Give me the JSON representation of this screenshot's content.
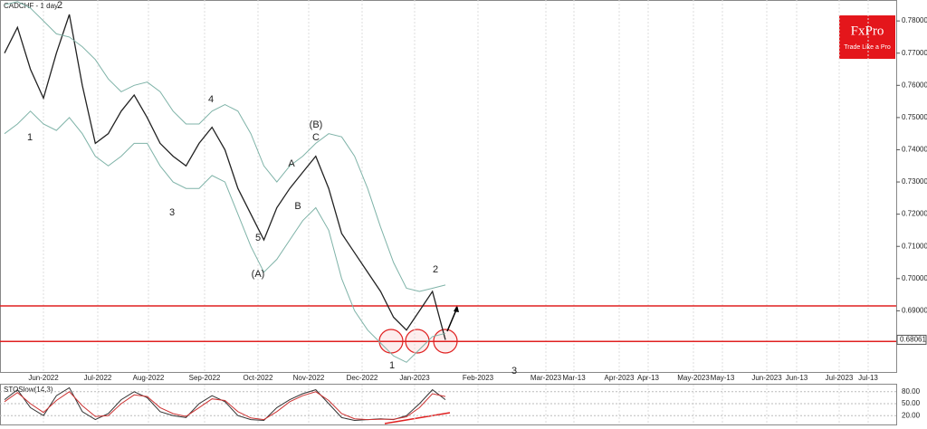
{
  "chart_data": {
    "type": "line",
    "title": "CADCHF - 1 day",
    "brand": "FxPro",
    "tagline": "Trade Like a Pro",
    "last_price_label": "0.68061",
    "xticks": [
      "Jun-2022",
      "Jul-2022",
      "Aug-2022",
      "Sep-2022",
      "Oct-2022",
      "Nov-2022",
      "Dec-2022",
      "Jan-2023",
      "Feb-2023",
      "Mar-2023",
      "Mar-13",
      "Apr-2023",
      "Apr-13",
      "May-2023",
      "May-13",
      "Jun-2023",
      "Jun-13",
      "Jul-2023",
      "Jul-13"
    ],
    "ylim": [
      0.671,
      0.7865
    ],
    "yticks": [
      {
        "value": 0.78,
        "label": "0.78000"
      },
      {
        "value": 0.77,
        "label": "0.77000"
      },
      {
        "value": 0.76,
        "label": "0.76000"
      },
      {
        "value": 0.75,
        "label": "0.75000"
      },
      {
        "value": 0.74,
        "label": "0.74000"
      },
      {
        "value": 0.73,
        "label": "0.73000"
      },
      {
        "value": 0.72,
        "label": "0.72000"
      },
      {
        "value": 0.71,
        "label": "0.71000"
      },
      {
        "value": 0.7,
        "label": "0.70000"
      },
      {
        "value": 0.69,
        "label": "0.69000"
      }
    ],
    "levels": [
      0.6915,
      0.6805
    ],
    "series": [
      {
        "name": "Close",
        "color": "#222222",
        "values": [
          0.77,
          0.778,
          0.765,
          0.756,
          0.77,
          0.782,
          0.76,
          0.742,
          0.745,
          0.752,
          0.757,
          0.75,
          0.742,
          0.738,
          0.735,
          0.742,
          0.747,
          0.74,
          0.728,
          0.72,
          0.712,
          0.722,
          0.728,
          0.733,
          0.738,
          0.728,
          0.714,
          0.708,
          0.702,
          0.696,
          0.688,
          0.684,
          0.69,
          0.696,
          0.681
        ]
      },
      {
        "name": "Upper band",
        "color": "#7fb3a8",
        "values": [
          0.785,
          0.786,
          0.784,
          0.78,
          0.776,
          0.775,
          0.772,
          0.768,
          0.762,
          0.758,
          0.76,
          0.761,
          0.758,
          0.752,
          0.748,
          0.748,
          0.752,
          0.754,
          0.752,
          0.745,
          0.735,
          0.73,
          0.735,
          0.738,
          0.742,
          0.745,
          0.744,
          0.738,
          0.728,
          0.716,
          0.705,
          0.697,
          0.696,
          0.697,
          0.698
        ]
      },
      {
        "name": "Lower band",
        "color": "#7fb3a8",
        "values": [
          0.745,
          0.748,
          0.752,
          0.748,
          0.746,
          0.75,
          0.745,
          0.738,
          0.735,
          0.738,
          0.742,
          0.742,
          0.735,
          0.73,
          0.728,
          0.728,
          0.732,
          0.73,
          0.72,
          0.71,
          0.702,
          0.706,
          0.712,
          0.718,
          0.722,
          0.715,
          0.7,
          0.69,
          0.684,
          0.68,
          0.676,
          0.674,
          0.678,
          0.682,
          0.683
        ]
      }
    ],
    "annotations": [
      "1",
      "2",
      "4",
      "5",
      "(A)",
      "3",
      "(B)",
      "C",
      "A",
      "B",
      "2",
      "1",
      "3"
    ],
    "oscillator": {
      "title": "STOSlow(14,3)",
      "ylim": [
        0,
        100
      ],
      "yticks": [
        {
          "value": 80,
          "label": "80.00"
        },
        {
          "value": 50,
          "label": "50.00"
        },
        {
          "value": 20,
          "label": "20.00"
        }
      ],
      "series": [
        {
          "name": "%K",
          "color": "#333333",
          "values": [
            60,
            85,
            40,
            20,
            70,
            90,
            30,
            10,
            25,
            60,
            80,
            65,
            30,
            20,
            15,
            50,
            70,
            55,
            20,
            10,
            8,
            40,
            60,
            75,
            85,
            50,
            15,
            8,
            10,
            12,
            10,
            20,
            50,
            85,
            60
          ]
        },
        {
          "name": "%D",
          "color": "#cc3333",
          "values": [
            55,
            78,
            50,
            28,
            58,
            80,
            45,
            18,
            20,
            50,
            72,
            68,
            40,
            25,
            18,
            40,
            62,
            58,
            30,
            14,
            10,
            30,
            55,
            70,
            80,
            58,
            25,
            12,
            10,
            11,
            11,
            17,
            40,
            75,
            68
          ]
        }
      ]
    }
  }
}
